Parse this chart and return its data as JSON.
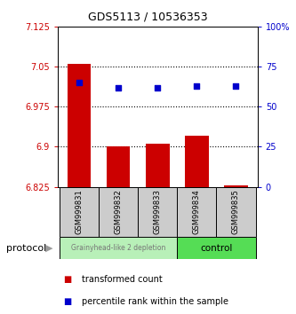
{
  "title": "GDS5113 / 10536353",
  "samples": [
    "GSM999831",
    "GSM999832",
    "GSM999833",
    "GSM999834",
    "GSM999835"
  ],
  "bar_values": [
    7.055,
    6.9,
    6.905,
    6.92,
    6.828
  ],
  "bar_baseline": 6.825,
  "percentile_values": [
    65,
    62,
    62,
    63,
    63
  ],
  "ylim_left": [
    6.825,
    7.125
  ],
  "ylim_right": [
    0,
    100
  ],
  "yticks_left": [
    6.825,
    6.9,
    6.975,
    7.05,
    7.125
  ],
  "ytick_labels_left": [
    "6.825",
    "6.9",
    "6.975",
    "7.05",
    "7.125"
  ],
  "yticks_right": [
    0,
    25,
    50,
    75,
    100
  ],
  "ytick_labels_right": [
    "0",
    "25",
    "50",
    "75",
    "100%"
  ],
  "hgrid_values": [
    7.05,
    6.975,
    6.9
  ],
  "bar_color": "#cc0000",
  "dot_color": "#0000cc",
  "group1_samples": [
    0,
    1,
    2
  ],
  "group2_samples": [
    3,
    4
  ],
  "group1_label": "Grainyhead-like 2 depletion",
  "group2_label": "control",
  "group1_color": "#b8f0b8",
  "group2_color": "#55dd55",
  "protocol_label": "protocol",
  "legend_bar_label": "transformed count",
  "legend_dot_label": "percentile rank within the sample",
  "left_axis_color": "#cc0000",
  "right_axis_color": "#0000cc",
  "bar_width": 0.6,
  "title_fontsize": 9,
  "tick_fontsize": 7,
  "sample_fontsize": 6,
  "legend_fontsize": 7,
  "protocol_fontsize": 8,
  "group1_text_color": "#777777",
  "group2_text_color": "#000000"
}
